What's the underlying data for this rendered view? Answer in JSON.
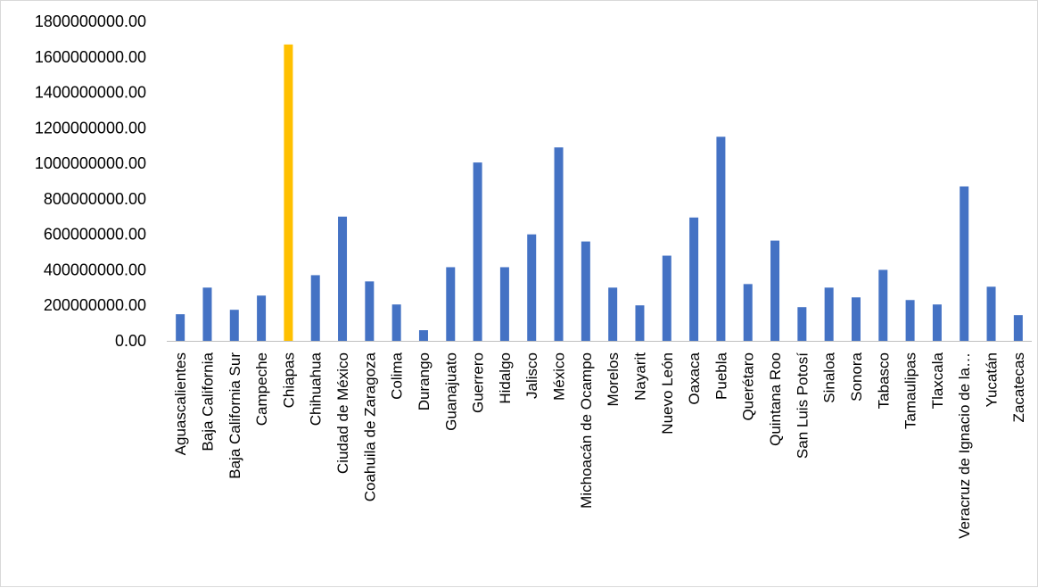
{
  "chart_data": {
    "type": "bar",
    "title": "",
    "xlabel": "",
    "ylabel": "",
    "ylim": [
      0,
      1800000000
    ],
    "ytick_values": [
      0,
      200000000,
      400000000,
      600000000,
      800000000,
      1000000000,
      1200000000,
      1400000000,
      1600000000,
      1800000000
    ],
    "ytick_labels": [
      "0.00",
      "200000000.00",
      "400000000.00",
      "600000000.00",
      "800000000.00",
      "1000000000.00",
      "1200000000.00",
      "1400000000.00",
      "1600000000.00",
      "1800000000.00"
    ],
    "grid": false,
    "legend": "none",
    "categories": [
      "Aguascalientes",
      "Baja California",
      "Baja California Sur",
      "Campeche",
      "Chiapas",
      "Chihuahua",
      "Ciudad de México",
      "Coahuila de Zaragoza",
      "Colima",
      "Durango",
      "Guanajuato",
      "Guerrero",
      "Hidalgo",
      "Jalisco",
      "México",
      "Michoacán de Ocampo",
      "Morelos",
      "Nayarit",
      "Nuevo León",
      "Oaxaca",
      "Puebla",
      "Querétaro",
      "Quintana Roo",
      "San Luis Potosí",
      "Sinaloa",
      "Sonora",
      "Tabasco",
      "Tamaulipas",
      "Tlaxcala",
      "Veracruz de Ignacio de la…",
      "Yucatán",
      "Zacatecas"
    ],
    "values": [
      150000000,
      300000000,
      175000000,
      255000000,
      1670000000,
      370000000,
      700000000,
      335000000,
      205000000,
      60000000,
      415000000,
      1005000000,
      415000000,
      600000000,
      1090000000,
      560000000,
      300000000,
      200000000,
      480000000,
      695000000,
      1150000000,
      320000000,
      565000000,
      190000000,
      300000000,
      245000000,
      400000000,
      230000000,
      205000000,
      870000000,
      305000000,
      145000000
    ],
    "highlight_index": 4,
    "colors": {
      "bar": "#4472c4",
      "highlight": "#ffc000",
      "axis": "#bfbfbf"
    }
  }
}
